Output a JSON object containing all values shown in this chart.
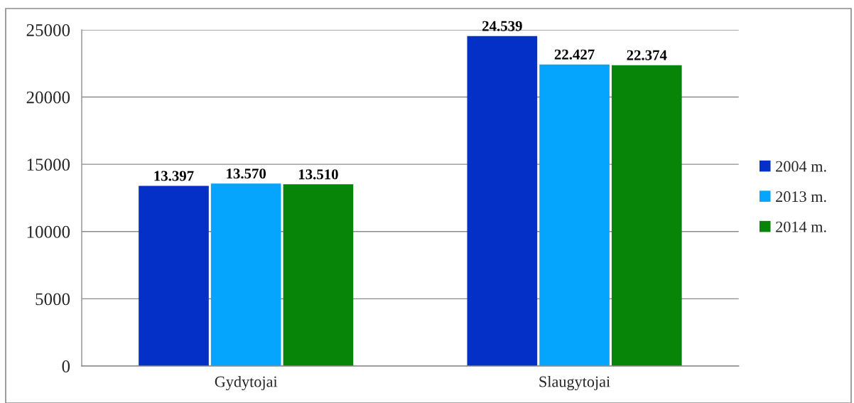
{
  "chart_data": {
    "type": "bar",
    "categories": [
      "Gydytojai",
      "Slaugytojai"
    ],
    "series": [
      {
        "name": "2004 m.",
        "color": "#0430c8",
        "values": [
          13397,
          24539
        ],
        "value_labels": [
          "13.397",
          "24.539"
        ]
      },
      {
        "name": "2013 m.",
        "color": "#05a5fe",
        "values": [
          13570,
          22427
        ],
        "value_labels": [
          "13.570",
          "22.427"
        ]
      },
      {
        "name": "2014 m.",
        "color": "#068508",
        "values": [
          13510,
          22374
        ],
        "value_labels": [
          "13.510",
          "22.374"
        ]
      }
    ],
    "ylim": [
      0,
      25000
    ],
    "yticks": [
      0,
      5000,
      10000,
      15000,
      20000,
      25000
    ],
    "grid": "y",
    "legend": "right"
  }
}
